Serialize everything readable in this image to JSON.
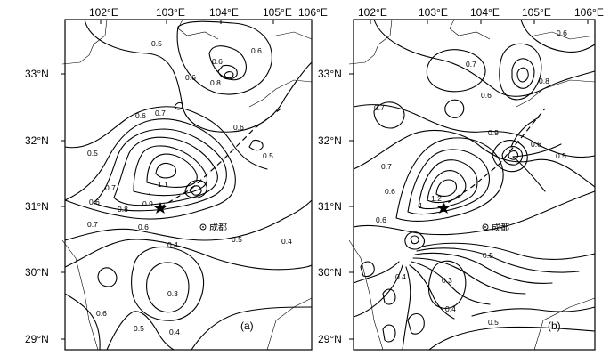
{
  "axes": {
    "lon_ticks": [
      "102°E",
      "103°E",
      "104°E",
      "105°E",
      "106°E"
    ],
    "lat_ticks": [
      "33°N",
      "32°N",
      "31°N",
      "30°N",
      "29°N"
    ]
  },
  "city_label": "成都",
  "panels": [
    {
      "tag": "(a)",
      "contour_labels": [
        "0.5",
        "0.6",
        "0.6",
        "0.6",
        "0.8",
        "0.7",
        "0.6",
        "0.6",
        "0.7",
        "1.1",
        "1",
        "0.9",
        "0.8",
        "0.7",
        "0.6",
        "0.5",
        "0.5",
        "0.4",
        "0.4",
        "0.3",
        "0.4",
        "0.5",
        "0.6",
        "0.6",
        "0.5"
      ]
    },
    {
      "tag": "(b)",
      "contour_labels": [
        "0.6",
        "0.7",
        "0.8",
        "0.6",
        "0.7",
        "0.9",
        "0.6",
        "0.5",
        "0.7",
        "0.6",
        "1.2",
        "1",
        "0.6",
        "0.5",
        "0.4",
        "0.3",
        "0.4",
        "0.5"
      ]
    }
  ]
}
